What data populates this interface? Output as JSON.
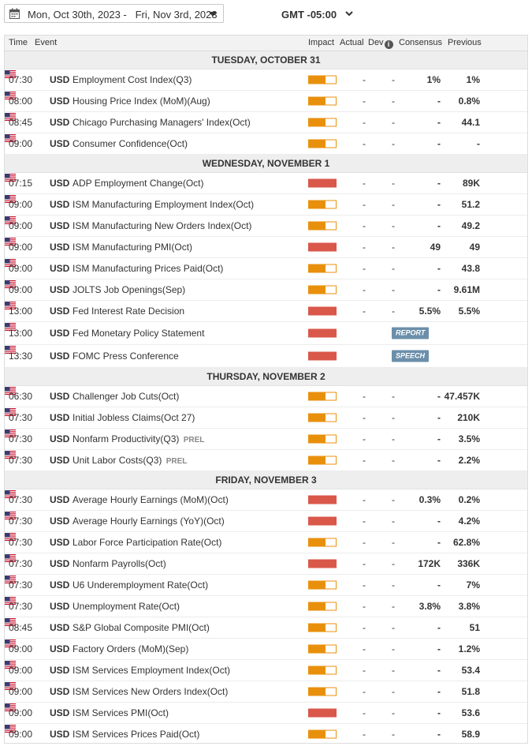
{
  "toolbar": {
    "date_range": "Mon, Oct 30th, 2023 -   Fri, Nov 3rd, 2023",
    "timezone": "GMT -05:00",
    "calendar_icon": "calendar-icon",
    "dropdown_icon": "caret-down-icon",
    "timezone_icon": "chevron-down-icon"
  },
  "columns": {
    "time": "Time",
    "event": "Event",
    "impact": "Impact",
    "actual": "Actual",
    "dev": "Dev",
    "consensus": "Consensus",
    "previous": "Previous"
  },
  "colors": {
    "impact_medium": "#e8900c",
    "impact_high": "#d9584a",
    "tag": "#6b8faa"
  },
  "days": [
    {
      "title": "TUESDAY, OCTOBER 31",
      "events": [
        {
          "time": "07:30",
          "currency": "USD",
          "name": "Employment Cost Index(Q3)",
          "impact": "medium",
          "actual": "-",
          "dev": "-",
          "consensus": "1%",
          "previous": "1%"
        },
        {
          "time": "08:00",
          "currency": "USD",
          "name": "Housing Price Index (MoM)(Aug)",
          "impact": "medium",
          "actual": "-",
          "dev": "-",
          "consensus": "-",
          "previous": "0.8%"
        },
        {
          "time": "08:45",
          "currency": "USD",
          "name": "Chicago Purchasing Managers' Index(Oct)",
          "impact": "medium",
          "actual": "-",
          "dev": "-",
          "consensus": "-",
          "previous": "44.1"
        },
        {
          "time": "09:00",
          "currency": "USD",
          "name": "Consumer Confidence(Oct)",
          "impact": "medium",
          "actual": "-",
          "dev": "-",
          "consensus": "-",
          "previous": "-"
        }
      ]
    },
    {
      "title": "WEDNESDAY, NOVEMBER 1",
      "events": [
        {
          "time": "07:15",
          "currency": "USD",
          "name": "ADP Employment Change(Oct)",
          "impact": "high",
          "actual": "-",
          "dev": "-",
          "consensus": "-",
          "previous": "89K"
        },
        {
          "time": "09:00",
          "currency": "USD",
          "name": "ISM Manufacturing Employment Index(Oct)",
          "impact": "medium",
          "actual": "-",
          "dev": "-",
          "consensus": "-",
          "previous": "51.2"
        },
        {
          "time": "09:00",
          "currency": "USD",
          "name": "ISM Manufacturing New Orders Index(Oct)",
          "impact": "medium",
          "actual": "-",
          "dev": "-",
          "consensus": "-",
          "previous": "49.2"
        },
        {
          "time": "09:00",
          "currency": "USD",
          "name": "ISM Manufacturing PMI(Oct)",
          "impact": "high",
          "actual": "-",
          "dev": "-",
          "consensus": "49",
          "previous": "49"
        },
        {
          "time": "09:00",
          "currency": "USD",
          "name": "ISM Manufacturing Prices Paid(Oct)",
          "impact": "medium",
          "actual": "-",
          "dev": "-",
          "consensus": "-",
          "previous": "43.8"
        },
        {
          "time": "09:00",
          "currency": "USD",
          "name": "JOLTS Job Openings(Sep)",
          "impact": "medium",
          "actual": "-",
          "dev": "-",
          "consensus": "-",
          "previous": "9.61M"
        },
        {
          "time": "13:00",
          "currency": "USD",
          "name": "Fed Interest Rate Decision",
          "impact": "high",
          "actual": "-",
          "dev": "-",
          "consensus": "5.5%",
          "previous": "5.5%"
        },
        {
          "time": "13:00",
          "currency": "USD",
          "name": "Fed Monetary Policy Statement",
          "impact": "high",
          "tag": "REPORT"
        },
        {
          "time": "13:30",
          "currency": "USD",
          "name": "FOMC Press Conference",
          "impact": "high",
          "tag": "SPEECH"
        }
      ]
    },
    {
      "title": "THURSDAY, NOVEMBER 2",
      "events": [
        {
          "time": "06:30",
          "currency": "USD",
          "name": "Challenger Job Cuts(Oct)",
          "impact": "medium",
          "actual": "-",
          "dev": "-",
          "consensus": "-",
          "previous": "47.457K"
        },
        {
          "time": "07:30",
          "currency": "USD",
          "name": "Initial Jobless Claims(Oct 27)",
          "impact": "medium",
          "actual": "-",
          "dev": "-",
          "consensus": "-",
          "previous": "210K"
        },
        {
          "time": "07:30",
          "currency": "USD",
          "name": "Nonfarm Productivity(Q3)",
          "suffix": "PREL",
          "impact": "medium",
          "actual": "-",
          "dev": "-",
          "consensus": "-",
          "previous": "3.5%"
        },
        {
          "time": "07:30",
          "currency": "USD",
          "name": "Unit Labor Costs(Q3)",
          "suffix": "PREL",
          "impact": "medium",
          "actual": "-",
          "dev": "-",
          "consensus": "-",
          "previous": "2.2%"
        }
      ]
    },
    {
      "title": "FRIDAY, NOVEMBER 3",
      "events": [
        {
          "time": "07:30",
          "currency": "USD",
          "name": "Average Hourly Earnings (MoM)(Oct)",
          "impact": "high",
          "actual": "-",
          "dev": "-",
          "consensus": "0.3%",
          "previous": "0.2%"
        },
        {
          "time": "07:30",
          "currency": "USD",
          "name": "Average Hourly Earnings (YoY)(Oct)",
          "impact": "high",
          "actual": "-",
          "dev": "-",
          "consensus": "-",
          "previous": "4.2%"
        },
        {
          "time": "07:30",
          "currency": "USD",
          "name": "Labor Force Participation Rate(Oct)",
          "impact": "medium",
          "actual": "-",
          "dev": "-",
          "consensus": "-",
          "previous": "62.8%"
        },
        {
          "time": "07:30",
          "currency": "USD",
          "name": "Nonfarm Payrolls(Oct)",
          "impact": "high",
          "actual": "-",
          "dev": "-",
          "consensus": "172K",
          "previous": "336K"
        },
        {
          "time": "07:30",
          "currency": "USD",
          "name": "U6 Underemployment Rate(Oct)",
          "impact": "medium",
          "actual": "-",
          "dev": "-",
          "consensus": "-",
          "previous": "7%"
        },
        {
          "time": "07:30",
          "currency": "USD",
          "name": "Unemployment Rate(Oct)",
          "impact": "medium",
          "actual": "-",
          "dev": "-",
          "consensus": "3.8%",
          "previous": "3.8%"
        },
        {
          "time": "08:45",
          "currency": "USD",
          "name": "S&P Global Composite PMI(Oct)",
          "impact": "medium",
          "actual": "-",
          "dev": "-",
          "consensus": "-",
          "previous": "51"
        },
        {
          "time": "09:00",
          "currency": "USD",
          "name": "Factory Orders (MoM)(Sep)",
          "impact": "medium",
          "actual": "-",
          "dev": "-",
          "consensus": "-",
          "previous": "1.2%"
        },
        {
          "time": "09:00",
          "currency": "USD",
          "name": "ISM Services Employment Index(Oct)",
          "impact": "medium",
          "actual": "-",
          "dev": "-",
          "consensus": "-",
          "previous": "53.4"
        },
        {
          "time": "09:00",
          "currency": "USD",
          "name": "ISM Services New Orders Index(Oct)",
          "impact": "medium",
          "actual": "-",
          "dev": "-",
          "consensus": "-",
          "previous": "51.8"
        },
        {
          "time": "09:00",
          "currency": "USD",
          "name": "ISM Services PMI(Oct)",
          "impact": "high",
          "actual": "-",
          "dev": "-",
          "consensus": "-",
          "previous": "53.6"
        },
        {
          "time": "09:00",
          "currency": "USD",
          "name": "ISM Services Prices Paid(Oct)",
          "impact": "medium",
          "actual": "-",
          "dev": "-",
          "consensus": "-",
          "previous": "58.9"
        }
      ]
    }
  ]
}
